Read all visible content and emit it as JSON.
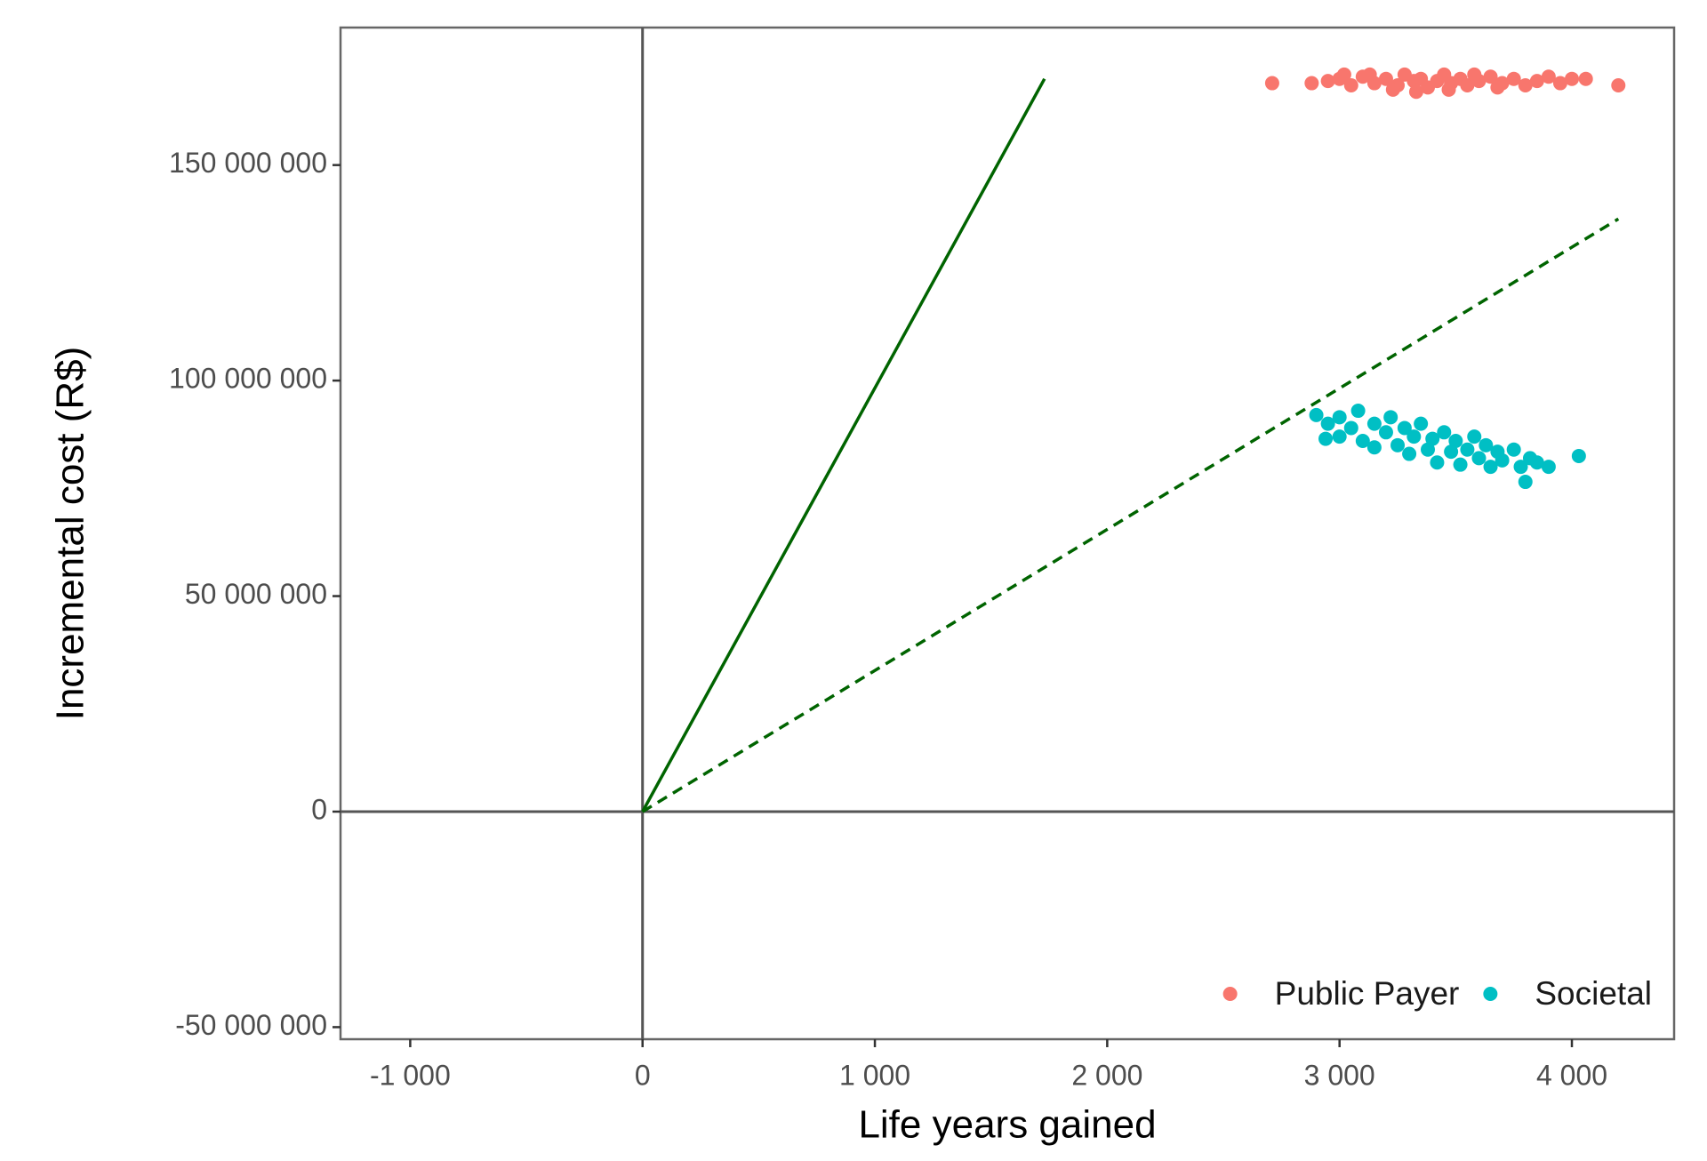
{
  "chart_data": {
    "type": "scatter",
    "xlabel": "Life years gained",
    "ylabel": "Incremental cost (R$)",
    "xlim": [
      -1300,
      4440
    ],
    "ylim": [
      -52800000,
      181900000
    ],
    "xticks": [
      {
        "value": -1000,
        "label": "-1 000"
      },
      0,
      {
        "value": 1000,
        "label": "1 000"
      },
      {
        "value": 2000,
        "label": "2 000"
      },
      {
        "value": 3000,
        "label": "3 000"
      },
      {
        "value": 4000,
        "label": "4 000"
      }
    ],
    "yticks": [
      {
        "value": -50000000,
        "label": "-50 000 000"
      },
      0,
      {
        "value": 50000000,
        "label": "50 000 000"
      },
      {
        "value": 100000000,
        "label": "100 000 000"
      },
      {
        "value": 150000000,
        "label": "150 000 000"
      }
    ],
    "legend_position": "bottom-right",
    "series": [
      {
        "name": "Public Payer",
        "color": "#F8766D",
        "x": [
          2710,
          2880,
          2950,
          3000,
          3050,
          3100,
          3150,
          3200,
          3250,
          3280,
          3320,
          3350,
          3380,
          3420,
          3450,
          3480,
          3520,
          3550,
          3600,
          3650,
          3700,
          3750,
          3800,
          3850,
          3900,
          3950,
          4000,
          4060,
          4200,
          3130,
          3230,
          3330,
          3470,
          3580,
          3680,
          3020
        ],
        "values": [
          169000000,
          169000000,
          169500000,
          170000000,
          168500000,
          170500000,
          169000000,
          170000000,
          168500000,
          171000000,
          169500000,
          170000000,
          168000000,
          169500000,
          171000000,
          169000000,
          170000000,
          168500000,
          169500000,
          170500000,
          169000000,
          170000000,
          168500000,
          169500000,
          170500000,
          169000000,
          170000000,
          170000000,
          168500000,
          171000000,
          167500000,
          167000000,
          167500000,
          171000000,
          168000000,
          171000000
        ]
      },
      {
        "name": "Societal",
        "color": "#00BFC4",
        "x": [
          2900,
          2950,
          3000,
          3000,
          3050,
          3080,
          3100,
          3150,
          3150,
          3200,
          3220,
          3250,
          3280,
          3300,
          3320,
          3350,
          3380,
          3400,
          3420,
          3450,
          3480,
          3500,
          3520,
          3550,
          3580,
          3600,
          3630,
          3650,
          3680,
          3700,
          3750,
          3780,
          3800,
          3820,
          3850,
          3900,
          4030,
          2940
        ],
        "values": [
          92000000,
          90000000,
          91500000,
          87000000,
          89000000,
          93000000,
          86000000,
          90000000,
          84500000,
          88000000,
          91500000,
          85000000,
          89000000,
          83000000,
          87000000,
          90000000,
          84000000,
          86500000,
          81000000,
          88000000,
          83500000,
          86000000,
          80500000,
          84000000,
          87000000,
          82000000,
          85000000,
          80000000,
          83500000,
          81500000,
          84000000,
          80000000,
          76500000,
          82000000,
          81000000,
          80000000,
          82500000,
          86500000
        ]
      }
    ],
    "lines": [
      {
        "color": "#006400",
        "style": "solid",
        "x": [
          0,
          1730
        ],
        "values": [
          0,
          170000000
        ]
      },
      {
        "color": "#006400",
        "style": "dashed",
        "x": [
          0,
          4200
        ],
        "values": [
          0,
          137500000
        ]
      }
    ]
  }
}
